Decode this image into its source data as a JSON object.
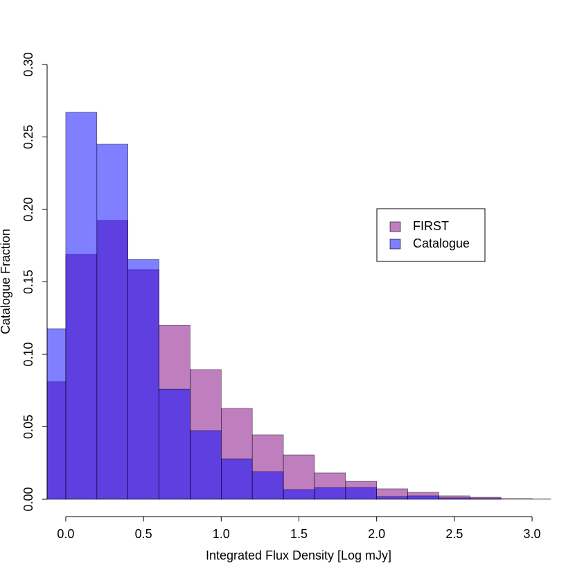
{
  "chart_data": {
    "type": "histogram",
    "xlabel": "Integrated Flux Density [Log mJy]",
    "ylabel": "Catalogue Fraction",
    "bins": [
      -0.12,
      0,
      0.2,
      0.4,
      0.6,
      0.8,
      1.0,
      1.2,
      1.4,
      1.6,
      1.8,
      2.0,
      2.2,
      2.4,
      2.6,
      2.8,
      3.0,
      3.12
    ],
    "series": [
      {
        "name": "FIRST",
        "color": "rgba(128,0,128,0.5)",
        "values": [
          0.081,
          0.169,
          0.1923,
          0.1584,
          0.12,
          0.0895,
          0.0627,
          0.0445,
          0.0306,
          0.0182,
          0.0124,
          0.0072,
          0.0048,
          0.0024,
          0.0014,
          0.0005,
          0.0002
        ]
      },
      {
        "name": "Catalogue",
        "color": "rgba(0,0,255,0.5)",
        "values": [
          0.1177,
          0.267,
          0.245,
          0.1655,
          0.076,
          0.0474,
          0.0278,
          0.0191,
          0.0067,
          0.0081,
          0.0081,
          0.0019,
          0.0024,
          0.001,
          0.0005,
          0,
          0
        ]
      }
    ],
    "xlim": [
      -0.12,
      3.12
    ],
    "ylim": [
      0,
      0.3
    ],
    "xticks": [
      {
        "value": 0,
        "label": "0.0"
      },
      0.5,
      {
        "value": 1,
        "label": "1.0"
      },
      1.5,
      {
        "value": 2,
        "label": "2.0"
      },
      2.5,
      {
        "value": 3,
        "label": "3.0"
      }
    ],
    "yticks": [
      {
        "value": 0,
        "label": "0.00"
      },
      0.05,
      {
        "value": 0.1,
        "label": "0.10"
      },
      0.15,
      {
        "value": 0.2,
        "label": "0.20"
      },
      0.25,
      {
        "value": 0.3,
        "label": "0.30"
      }
    ],
    "legend": "right"
  }
}
